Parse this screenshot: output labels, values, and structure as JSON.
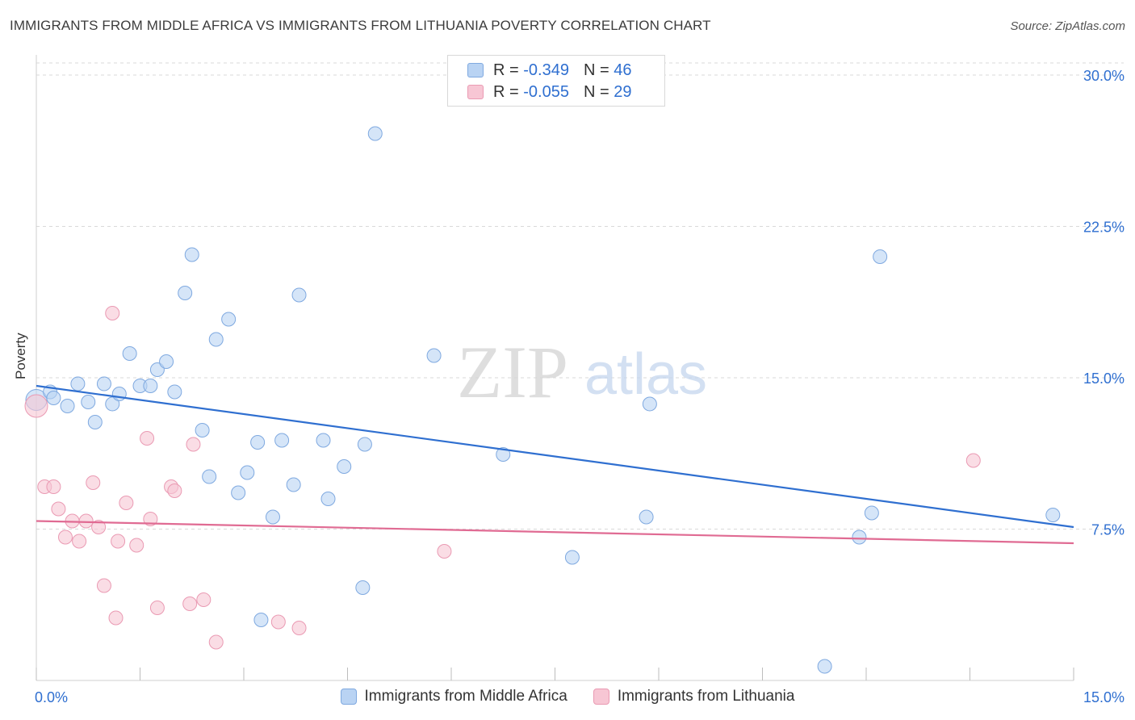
{
  "header": {
    "title": "IMMIGRANTS FROM MIDDLE AFRICA VS IMMIGRANTS FROM LITHUANIA POVERTY CORRELATION CHART",
    "source": "Source: ZipAtlas.com"
  },
  "watermark": {
    "zip": "ZIP",
    "atlas": "atlas"
  },
  "legend_top": [
    {
      "r_label": "R =",
      "r_value": "-0.349",
      "n_label": "N =",
      "n_value": "46"
    },
    {
      "r_label": "R =",
      "r_value": "-0.055",
      "n_label": "N =",
      "n_value": "29"
    }
  ],
  "colors": {
    "blue_fill": "#b9d3f3",
    "blue_stroke": "#7fa9e0",
    "blue_line": "#2f6fd0",
    "pink_fill": "#f7c6d4",
    "pink_stroke": "#ea9ab3",
    "pink_line": "#e06b93",
    "tick_label": "#2f6fd0",
    "grid": "#d9d9d9"
  },
  "chart_data": {
    "type": "scatter",
    "title": "IMMIGRANTS FROM MIDDLE AFRICA VS IMMIGRANTS FROM LITHUANIA POVERTY CORRELATION CHART",
    "xlabel": "",
    "ylabel": "Poverty",
    "xlim": [
      0,
      15
    ],
    "ylim": [
      0,
      31
    ],
    "x_tick_labels": [
      "0.0%",
      "15.0%"
    ],
    "y_ticks": [
      7.5,
      15.0,
      22.5,
      30.0
    ],
    "y_tick_labels": [
      "7.5%",
      "15.0%",
      "22.5%",
      "30.0%"
    ],
    "legend_position": "top-center",
    "series": [
      {
        "name": "Immigrants from Middle Africa",
        "r": -0.349,
        "n": 46,
        "trend": [
          [
            0.0,
            14.6
          ],
          [
            15.0,
            7.6
          ]
        ],
        "points": [
          [
            0.0,
            13.9
          ],
          [
            0.2,
            14.3
          ],
          [
            0.25,
            14.0
          ],
          [
            0.45,
            13.6
          ],
          [
            0.6,
            14.7
          ],
          [
            0.75,
            13.8
          ],
          [
            0.85,
            12.8
          ],
          [
            0.98,
            14.7
          ],
          [
            1.1,
            13.7
          ],
          [
            1.2,
            14.2
          ],
          [
            1.35,
            16.2
          ],
          [
            1.5,
            14.6
          ],
          [
            1.65,
            14.6
          ],
          [
            1.75,
            15.4
          ],
          [
            1.88,
            15.8
          ],
          [
            2.0,
            14.3
          ],
          [
            2.15,
            19.2
          ],
          [
            2.25,
            21.1
          ],
          [
            2.4,
            12.4
          ],
          [
            2.5,
            10.1
          ],
          [
            2.6,
            16.9
          ],
          [
            2.78,
            17.9
          ],
          [
            2.92,
            9.3
          ],
          [
            3.05,
            10.3
          ],
          [
            3.2,
            11.8
          ],
          [
            3.25,
            3.0
          ],
          [
            3.42,
            8.1
          ],
          [
            3.55,
            11.9
          ],
          [
            3.72,
            9.7
          ],
          [
            3.8,
            19.1
          ],
          [
            4.15,
            11.9
          ],
          [
            4.22,
            9.0
          ],
          [
            4.45,
            10.6
          ],
          [
            4.72,
            4.6
          ],
          [
            4.75,
            11.7
          ],
          [
            4.9,
            27.1
          ],
          [
            5.75,
            16.1
          ],
          [
            6.75,
            11.2
          ],
          [
            7.75,
            6.1
          ],
          [
            8.82,
            8.1
          ],
          [
            8.87,
            13.7
          ],
          [
            11.4,
            0.7
          ],
          [
            11.9,
            7.1
          ],
          [
            12.08,
            8.3
          ],
          [
            12.2,
            21.0
          ],
          [
            14.7,
            8.2
          ]
        ]
      },
      {
        "name": "Immigrants from Lithuania",
        "r": -0.055,
        "n": 29,
        "trend": [
          [
            0.0,
            7.9
          ],
          [
            15.0,
            6.8
          ]
        ],
        "points": [
          [
            0.0,
            13.6
          ],
          [
            0.12,
            9.6
          ],
          [
            0.25,
            9.6
          ],
          [
            0.32,
            8.5
          ],
          [
            0.42,
            7.1
          ],
          [
            0.52,
            7.9
          ],
          [
            0.62,
            6.9
          ],
          [
            0.72,
            7.9
          ],
          [
            0.82,
            9.8
          ],
          [
            0.9,
            7.6
          ],
          [
            0.98,
            4.7
          ],
          [
            1.1,
            18.2
          ],
          [
            1.15,
            3.1
          ],
          [
            1.18,
            6.9
          ],
          [
            1.3,
            8.8
          ],
          [
            1.45,
            6.7
          ],
          [
            1.6,
            12.0
          ],
          [
            1.65,
            8.0
          ],
          [
            1.75,
            3.6
          ],
          [
            1.95,
            9.6
          ],
          [
            2.0,
            9.4
          ],
          [
            2.22,
            3.8
          ],
          [
            2.27,
            11.7
          ],
          [
            2.42,
            4.0
          ],
          [
            2.6,
            1.9
          ],
          [
            3.5,
            2.9
          ],
          [
            3.8,
            2.6
          ],
          [
            5.9,
            6.4
          ],
          [
            13.55,
            10.9
          ]
        ]
      }
    ]
  },
  "legend_bottom": [
    {
      "label": "Immigrants from Middle Africa"
    },
    {
      "label": "Immigrants from Lithuania"
    }
  ]
}
